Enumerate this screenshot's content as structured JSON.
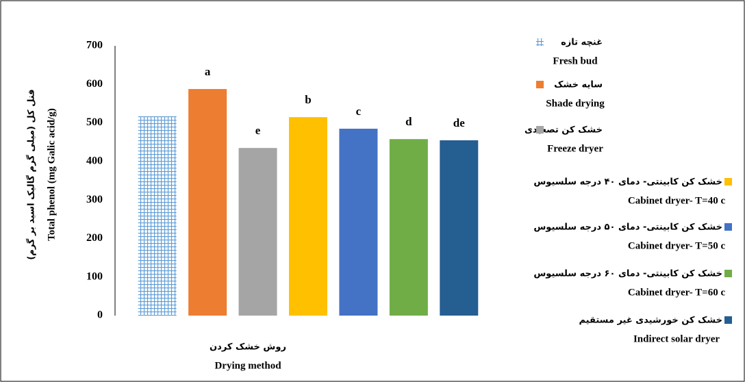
{
  "chart_data": {
    "type": "bar",
    "y_title_fa": "فنل کل (میلی گرم گالیک اسید بر گرم)",
    "y_title": "Total phenol (mg Galic acid/g)",
    "x_title_fa": "روش خشک کردن",
    "x_title": "Drying method",
    "ylim": [
      0,
      700
    ],
    "yticks": [
      0,
      100,
      200,
      300,
      400,
      500,
      600,
      700
    ],
    "grid": false,
    "series": [
      {
        "name": "Fresh bud",
        "name_fa": "غنچه تازه",
        "color": "#5b9bd5",
        "pattern": "grid",
        "values": [
          517
        ]
      },
      {
        "name": "Shade drying",
        "name_fa": "سایه خشک",
        "color": "#ed7d31",
        "values": [
          588
        ],
        "letters": [
          "a"
        ]
      },
      {
        "name": "Freeze dryer",
        "name_fa": "خشک کن تصعیدی",
        "color": "#a5a5a5",
        "values": [
          435
        ],
        "letters": [
          "e"
        ]
      },
      {
        "name": "Cabinet dryer- T=40 c",
        "name_fa": "خشک کن کابینتی- دمای ۴۰ درجه سلسیوس",
        "color": "#ffc000",
        "values": [
          515
        ],
        "letters": [
          "b"
        ]
      },
      {
        "name": "Cabinet dryer- T=50 c",
        "name_fa": "خشک کن کابینتی- دمای ۵۰ درجه سلسیوس",
        "color": "#4472c4",
        "values": [
          485
        ],
        "letters": [
          "c"
        ]
      },
      {
        "name": "Cabinet dryer- T=60 c",
        "name_fa": "خشک کن کابینتی- دمای ۶۰ درجه سلسیوس",
        "color": "#70ad47",
        "values": [
          458
        ],
        "letters": [
          "d"
        ]
      },
      {
        "name": "Indirect solar dryer",
        "name_fa": "خشک کن خورشیدی غیر مستقیم",
        "color": "#255e91",
        "values": [
          455
        ],
        "letters": [
          "de"
        ]
      }
    ]
  }
}
